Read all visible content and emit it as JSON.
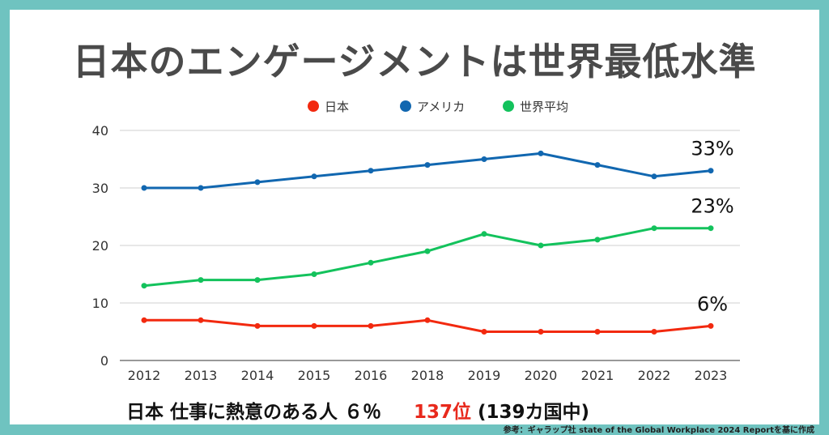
{
  "title": "日本のエンゲージメントは世界最低水準",
  "chart_data": {
    "type": "line",
    "x": [
      "2012",
      "2013",
      "2014",
      "2015",
      "2016",
      "2018",
      "2019",
      "2020",
      "2021",
      "2022",
      "2023"
    ],
    "ylim": [
      0,
      40
    ],
    "yticks": [
      0,
      10,
      20,
      30,
      40
    ],
    "grid": true,
    "legend_position": "top-center",
    "series": [
      {
        "name": "日本",
        "color": "#f2290f",
        "values": [
          7,
          7,
          6,
          6,
          6,
          7,
          5,
          5,
          5,
          5,
          6
        ],
        "end_label": "6%"
      },
      {
        "name": "アメリカ",
        "color": "#1167b0",
        "values": [
          30,
          30,
          31,
          32,
          33,
          34,
          35,
          36,
          34,
          32,
          33
        ],
        "end_label": "33%"
      },
      {
        "name": "世界平均",
        "color": "#13c25c",
        "values": [
          13,
          14,
          14,
          15,
          17,
          19,
          22,
          20,
          21,
          23,
          23
        ],
        "end_label": "23%"
      }
    ]
  },
  "footer": {
    "statement": "日本 仕事に熱意のある人 ６％",
    "rank": "137位",
    "rank_note": " (139カ国中)"
  },
  "source": "参考：ギャラップ社 state of the Global Workplace 2024 Reportを基に作成"
}
